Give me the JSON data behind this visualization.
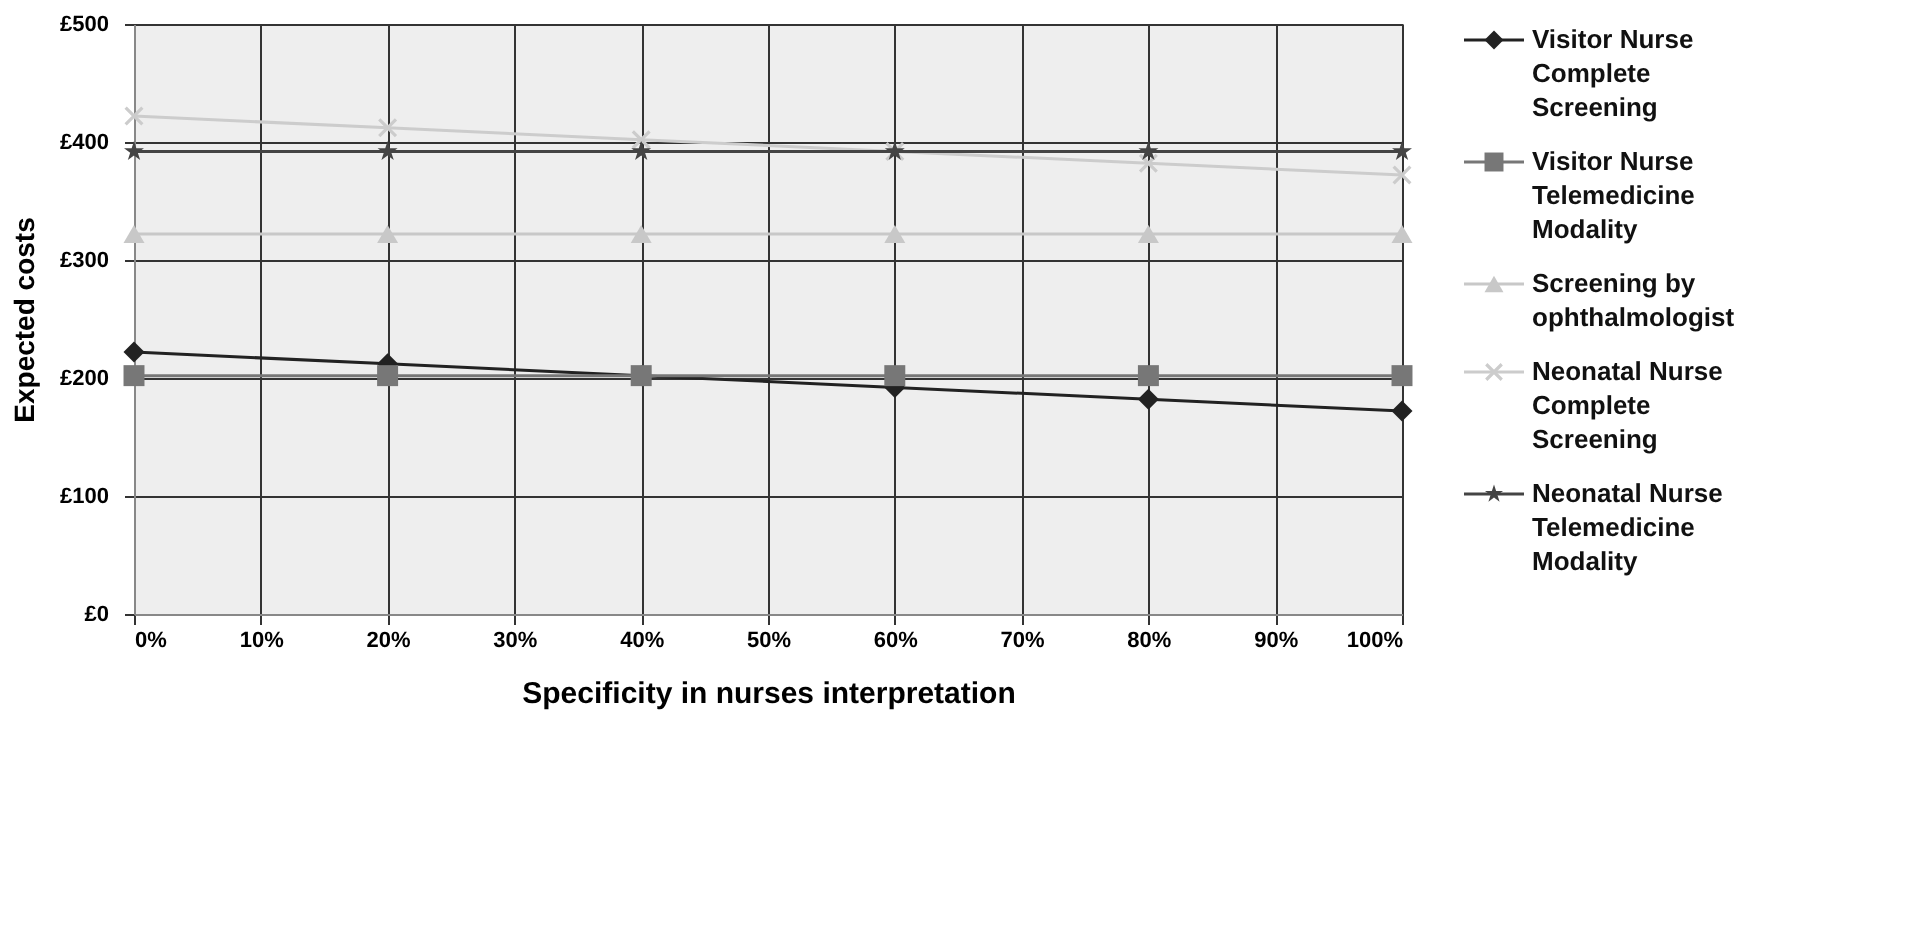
{
  "chart_data": {
    "type": "line",
    "xlabel": "Specificity in nurses interpretation",
    "ylabel": "Expected costs",
    "x": [
      0,
      20,
      40,
      60,
      80,
      100
    ],
    "series": [
      {
        "name": "Visitor Nurse Complete Screening",
        "color": "#222222",
        "marker": "diamond",
        "values": [
          222,
          212,
          202,
          192,
          182,
          172
        ]
      },
      {
        "name": "Visitor Nurse Telemedicine Modality",
        "color": "#777777",
        "marker": "square",
        "values": [
          202,
          202,
          202,
          202,
          202,
          202
        ]
      },
      {
        "name": "Screening by ophthalmologist",
        "color": "#c8c8c8",
        "marker": "triangle",
        "values": [
          322,
          322,
          322,
          322,
          322,
          322
        ]
      },
      {
        "name": "Neonatal Nurse Complete Screening",
        "color": "#cccccc",
        "marker": "cross",
        "values": [
          422,
          412,
          402,
          392,
          382,
          372
        ]
      },
      {
        "name": "Neonatal Nurse Telemedicine Modality",
        "color": "#444444",
        "marker": "star",
        "values": [
          392,
          392,
          392,
          392,
          392,
          392
        ]
      }
    ],
    "xlim": [
      0,
      100
    ],
    "xticks": [
      {
        "value": 0,
        "label": "0%"
      },
      {
        "value": 10,
        "label": "10%"
      },
      {
        "value": 20,
        "label": "20%"
      },
      {
        "value": 30,
        "label": "30%"
      },
      {
        "value": 40,
        "label": "40%"
      },
      {
        "value": 50,
        "label": "50%"
      },
      {
        "value": 60,
        "label": "60%"
      },
      {
        "value": 70,
        "label": "70%"
      },
      {
        "value": 80,
        "label": "80%"
      },
      {
        "value": 90,
        "label": "90%"
      },
      {
        "value": 100,
        "label": "100%"
      }
    ],
    "ylim": [
      0,
      500
    ],
    "yticks": [
      {
        "value": 0,
        "label": "£0"
      },
      {
        "value": 100,
        "label": "£100"
      },
      {
        "value": 200,
        "label": "£200"
      },
      {
        "value": 300,
        "label": "£300"
      },
      {
        "value": 400,
        "label": "£400"
      },
      {
        "value": 500,
        "label": "£500"
      }
    ],
    "grid": true,
    "legend": "right",
    "line_style": "solid"
  }
}
